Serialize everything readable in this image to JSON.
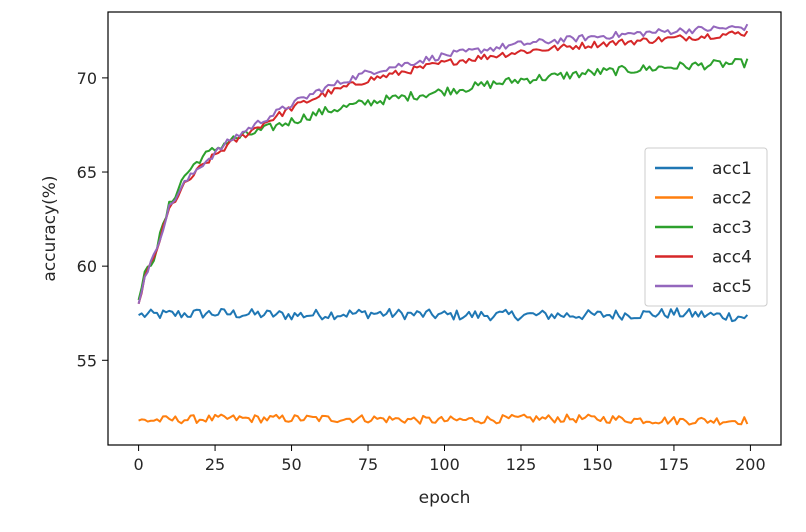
{
  "chart_data": {
    "type": "line",
    "title": "",
    "xlabel": "epoch",
    "ylabel": "accuracy(%)",
    "xlim": [
      -10,
      210
    ],
    "ylim": [
      50.5,
      73.5
    ],
    "xticks": [
      0,
      25,
      50,
      75,
      100,
      125,
      150,
      175,
      200
    ],
    "yticks": [
      55,
      60,
      65,
      70
    ],
    "grid": false,
    "legend_position": "center-right",
    "epochs": 200,
    "series": [
      {
        "name": "acc1",
        "color": "#1f77b4",
        "x": [
          0,
          25,
          50,
          75,
          100,
          125,
          150,
          175,
          199
        ],
        "y": [
          57.4,
          57.5,
          57.4,
          57.5,
          57.4,
          57.4,
          57.4,
          57.5,
          57.3
        ]
      },
      {
        "name": "acc2",
        "color": "#ff7f0e",
        "x": [
          0,
          25,
          50,
          75,
          100,
          125,
          150,
          175,
          199
        ],
        "y": [
          51.8,
          51.9,
          51.9,
          51.9,
          51.8,
          51.9,
          51.9,
          51.8,
          51.8
        ]
      },
      {
        "name": "acc3",
        "color": "#2ca02c",
        "x": [
          0,
          2,
          5,
          10,
          15,
          20,
          25,
          30,
          40,
          50,
          60,
          75,
          100,
          125,
          150,
          175,
          199
        ],
        "y": [
          58.2,
          59.5,
          60.5,
          63.2,
          64.8,
          65.7,
          66.2,
          66.7,
          67.2,
          67.7,
          68.2,
          68.7,
          69.3,
          69.9,
          70.3,
          70.6,
          70.8
        ]
      },
      {
        "name": "acc4",
        "color": "#d62728",
        "x": [
          0,
          2,
          5,
          10,
          15,
          20,
          25,
          30,
          40,
          50,
          60,
          75,
          100,
          125,
          150,
          175,
          199
        ],
        "y": [
          58.0,
          59.4,
          60.4,
          63.0,
          64.3,
          65.2,
          65.9,
          66.5,
          67.5,
          68.4,
          69.1,
          69.9,
          70.8,
          71.4,
          71.8,
          72.1,
          72.4
        ]
      },
      {
        "name": "acc5",
        "color": "#9467bd",
        "x": [
          0,
          2,
          5,
          10,
          15,
          20,
          25,
          30,
          40,
          50,
          60,
          75,
          100,
          125,
          150,
          175,
          199
        ],
        "y": [
          58.0,
          59.5,
          60.5,
          63.1,
          64.4,
          65.3,
          66.0,
          66.7,
          67.7,
          68.6,
          69.4,
          70.3,
          71.2,
          71.8,
          72.2,
          72.5,
          72.7
        ]
      }
    ]
  }
}
